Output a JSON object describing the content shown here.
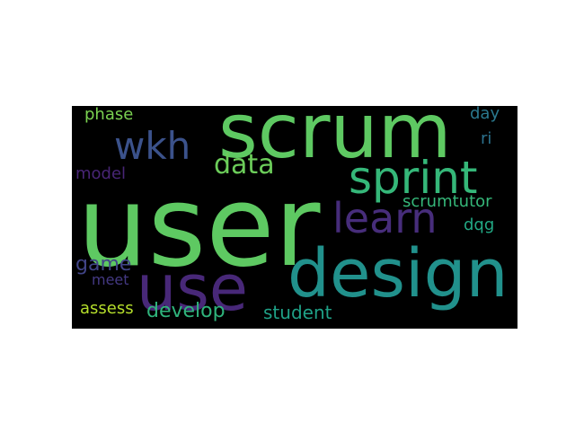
{
  "wordcloud": {
    "background": "#000000",
    "words": [
      {
        "id": "user",
        "text": "user",
        "color": "#5ec962"
      },
      {
        "id": "scrum",
        "text": "scrum",
        "color": "#5ec962"
      },
      {
        "id": "design",
        "text": "design",
        "color": "#21918c"
      },
      {
        "id": "use",
        "text": "use",
        "color": "#482878"
      },
      {
        "id": "sprint",
        "text": "sprint",
        "color": "#35b779"
      },
      {
        "id": "learn",
        "text": "learn",
        "color": "#472d7b"
      },
      {
        "id": "wkh",
        "text": "wkh",
        "color": "#3b528b"
      },
      {
        "id": "data",
        "text": "data",
        "color": "#6ccd5a"
      },
      {
        "id": "phase",
        "text": "phase",
        "color": "#7ad151"
      },
      {
        "id": "day",
        "text": "day",
        "color": "#2a788e"
      },
      {
        "id": "ri",
        "text": "ri",
        "color": "#2c728e"
      },
      {
        "id": "model",
        "text": "model",
        "color": "#482576"
      },
      {
        "id": "scrumtutor",
        "text": "scrumtutor",
        "color": "#35b779"
      },
      {
        "id": "dqg",
        "text": "dqg",
        "color": "#22a884"
      },
      {
        "id": "game",
        "text": "game",
        "color": "#414487"
      },
      {
        "id": "meet",
        "text": "meet",
        "color": "#443983"
      },
      {
        "id": "assess",
        "text": "assess",
        "color": "#b5de2b"
      },
      {
        "id": "develop",
        "text": "develop",
        "color": "#2fb47c"
      },
      {
        "id": "student",
        "text": "student",
        "color": "#1fa187"
      }
    ]
  }
}
